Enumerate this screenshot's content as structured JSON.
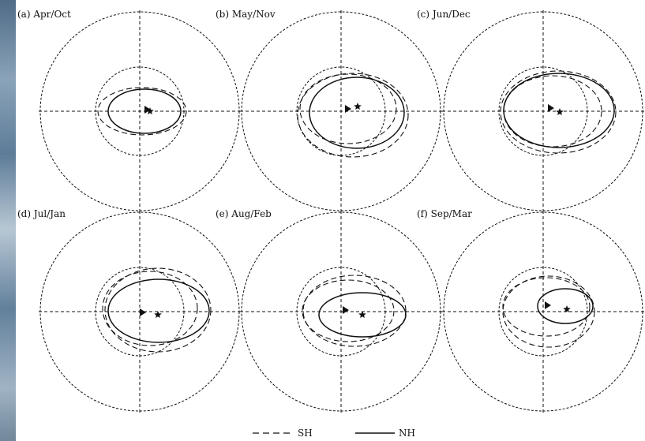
{
  "panels": [
    {
      "label": "(a) Apr/Oct"
    },
    {
      "label": "(b) May/Nov"
    },
    {
      "label": "(c) Jun/Dec"
    },
    {
      "label": "(d) Jul/Jan"
    },
    {
      "label": "(e) Aug/Feb"
    },
    {
      "label": "(f) Sep/Mar"
    }
  ],
  "legend": {
    "sh": "SH",
    "nh": "NH"
  },
  "colors": {
    "ink": "#111111",
    "background": "#ffffff"
  },
  "icons": [
    "triangle-marker",
    "star-marker"
  ]
}
